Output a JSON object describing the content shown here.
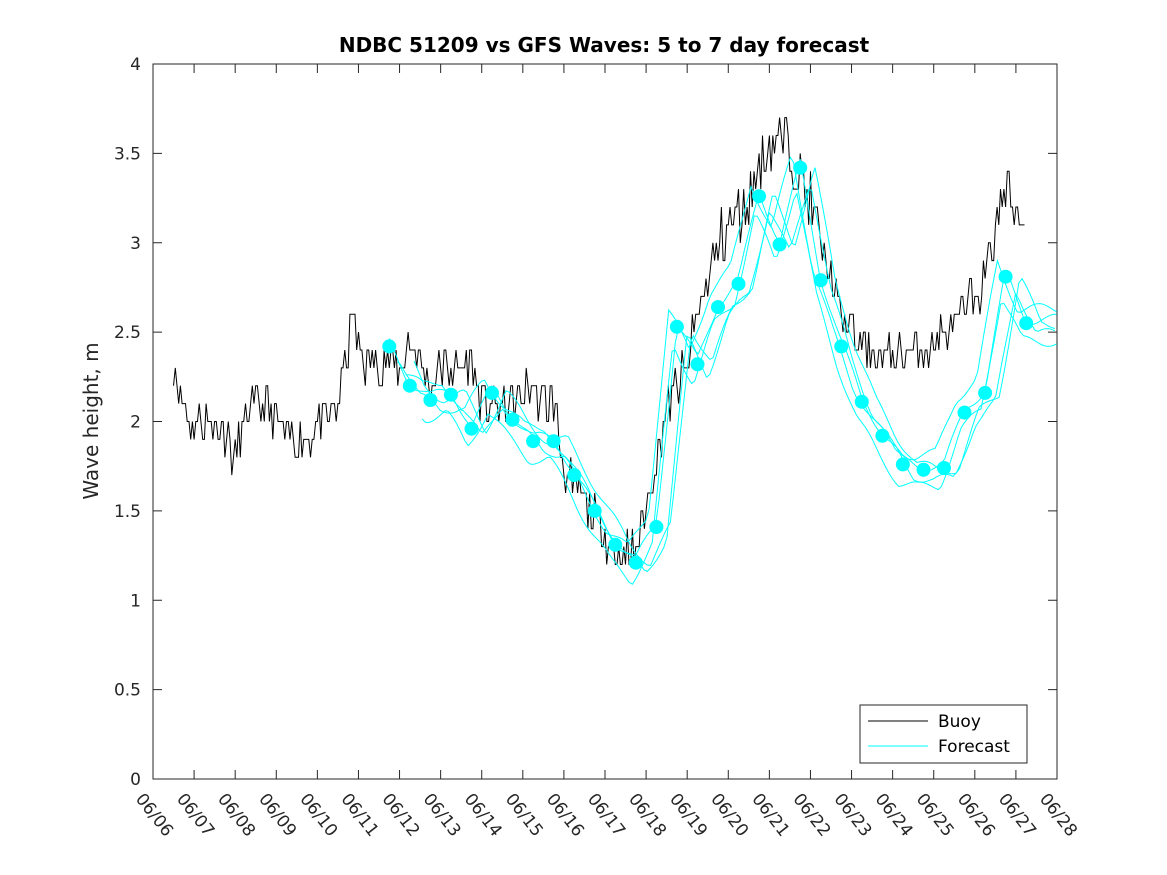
{
  "chart_data": {
    "type": "line",
    "title": "NDBC 51209 vs GFS Waves: 5 to 7 day forecast",
    "ylabel": "Wave height, m",
    "xlabel": "",
    "xlim": [
      "06/06",
      "06/28"
    ],
    "ylim": [
      0,
      4
    ],
    "x_tick_labels": [
      "06/06",
      "06/07",
      "06/08",
      "06/09",
      "06/10",
      "06/11",
      "06/12",
      "06/13",
      "06/14",
      "06/15",
      "06/16",
      "06/17",
      "06/18",
      "06/19",
      "06/20",
      "06/21",
      "06/22",
      "06/23",
      "06/24",
      "06/25",
      "06/26",
      "06/27",
      "06/28"
    ],
    "y_tick_labels": [
      "0",
      "0.5",
      "1",
      "1.5",
      "2",
      "2.5",
      "3",
      "3.5",
      "4"
    ],
    "legend": {
      "position": "bottom-right",
      "entries": [
        "Buoy",
        "Forecast"
      ]
    },
    "colors": {
      "buoy": "#000000",
      "forecast": "#00ffff"
    },
    "series": [
      {
        "name": "Buoy",
        "color": "#000000",
        "points": [
          [
            "06/06 12:00",
            2.3
          ],
          [
            "06/06 15:00",
            2.2
          ],
          [
            "06/06 18:00",
            2.1
          ],
          [
            "06/06 21:00",
            2.0
          ],
          [
            "06/07 00:00",
            2.0
          ],
          [
            "06/07 06:00",
            2.0
          ],
          [
            "06/07 12:00",
            2.0
          ],
          [
            "06/07 18:00",
            1.9
          ],
          [
            "06/08 00:00",
            1.8
          ],
          [
            "06/08 06:00",
            2.0
          ],
          [
            "06/08 12:00",
            2.1
          ],
          [
            "06/08 18:00",
            2.1
          ],
          [
            "06/09 00:00",
            2.0
          ],
          [
            "06/09 06:00",
            1.9
          ],
          [
            "06/09 12:00",
            1.9
          ],
          [
            "06/09 18:00",
            1.9
          ],
          [
            "06/10 00:00",
            2.0
          ],
          [
            "06/10 06:00",
            2.0
          ],
          [
            "06/10 12:00",
            2.1
          ],
          [
            "06/10 18:00",
            2.4
          ],
          [
            "06/10 21:00",
            2.6
          ],
          [
            "06/11 00:00",
            2.4
          ],
          [
            "06/11 06:00",
            2.3
          ],
          [
            "06/11 12:00",
            2.35
          ],
          [
            "06/11 18:00",
            2.35
          ],
          [
            "06/12 00:00",
            2.3
          ],
          [
            "06/12 06:00",
            2.45
          ],
          [
            "06/12 12:00",
            2.3
          ],
          [
            "06/12 18:00",
            2.2
          ],
          [
            "06/13 00:00",
            2.3
          ],
          [
            "06/13 06:00",
            2.3
          ],
          [
            "06/13 12:00",
            2.3
          ],
          [
            "06/13 18:00",
            2.3
          ],
          [
            "06/14 00:00",
            2.1
          ],
          [
            "06/14 06:00",
            2.1
          ],
          [
            "06/14 12:00",
            2.05
          ],
          [
            "06/14 18:00",
            2.1
          ],
          [
            "06/15 00:00",
            2.15
          ],
          [
            "06/15 06:00",
            2.2
          ],
          [
            "06/15 12:00",
            2.1
          ],
          [
            "06/15 18:00",
            2.1
          ],
          [
            "06/16 00:00",
            1.75
          ],
          [
            "06/16 06:00",
            1.6
          ],
          [
            "06/16 12:00",
            1.55
          ],
          [
            "06/16 18:00",
            1.45
          ],
          [
            "06/17 00:00",
            1.35
          ],
          [
            "06/17 06:00",
            1.3
          ],
          [
            "06/17 12:00",
            1.25
          ],
          [
            "06/17 18:00",
            1.3
          ],
          [
            "06/18 00:00",
            1.5
          ],
          [
            "06/18 06:00",
            1.8
          ],
          [
            "06/18 12:00",
            2.1
          ],
          [
            "06/18 18:00",
            2.2
          ],
          [
            "06/19 00:00",
            2.3
          ],
          [
            "06/19 06:00",
            2.6
          ],
          [
            "06/19 12:00",
            2.8
          ],
          [
            "06/19 18:00",
            3.0
          ],
          [
            "06/20 00:00",
            3.1
          ],
          [
            "06/20 06:00",
            3.15
          ],
          [
            "06/20 12:00",
            3.25
          ],
          [
            "06/20 18:00",
            3.4
          ],
          [
            "06/21 00:00",
            3.55
          ],
          [
            "06/21 06:00",
            3.6
          ],
          [
            "06/21 12:00",
            3.55
          ],
          [
            "06/21 18:00",
            3.4
          ],
          [
            "06/22 00:00",
            3.2
          ],
          [
            "06/22 06:00",
            3.0
          ],
          [
            "06/22 12:00",
            2.8
          ],
          [
            "06/22 18:00",
            2.6
          ],
          [
            "06/23 00:00",
            2.5
          ],
          [
            "06/23 06:00",
            2.45
          ],
          [
            "06/23 12:00",
            2.4
          ],
          [
            "06/23 18:00",
            2.35
          ],
          [
            "06/24 00:00",
            2.4
          ],
          [
            "06/24 06:00",
            2.4
          ],
          [
            "06/24 12:00",
            2.4
          ],
          [
            "06/24 18:00",
            2.4
          ],
          [
            "06/25 00:00",
            2.45
          ],
          [
            "06/25 06:00",
            2.5
          ],
          [
            "06/25 12:00",
            2.55
          ],
          [
            "06/25 18:00",
            2.6
          ],
          [
            "06/26 00:00",
            2.7
          ],
          [
            "06/26 06:00",
            2.8
          ],
          [
            "06/26 12:00",
            3.1
          ],
          [
            "06/26 18:00",
            3.3
          ],
          [
            "06/27 00:00",
            3.2
          ],
          [
            "06/27 06:00",
            3.1
          ]
        ]
      },
      {
        "name": "Forecast",
        "color": "#00ffff",
        "markers": [
          [
            "06/11 18:00",
            2.42
          ],
          [
            "06/12 06:00",
            2.2
          ],
          [
            "06/12 18:00",
            2.12
          ],
          [
            "06/13 06:00",
            2.15
          ],
          [
            "06/13 18:00",
            1.96
          ],
          [
            "06/14 06:00",
            2.16
          ],
          [
            "06/14 18:00",
            2.01
          ],
          [
            "06/15 06:00",
            1.89
          ],
          [
            "06/15 18:00",
            1.89
          ],
          [
            "06/16 06:00",
            1.7
          ],
          [
            "06/16 18:00",
            1.5
          ],
          [
            "06/17 06:00",
            1.31
          ],
          [
            "06/17 18:00",
            1.21
          ],
          [
            "06/18 06:00",
            1.41
          ],
          [
            "06/18 18:00",
            2.53
          ],
          [
            "06/19 06:00",
            2.32
          ],
          [
            "06/19 18:00",
            2.64
          ],
          [
            "06/20 06:00",
            2.77
          ],
          [
            "06/20 18:00",
            3.26
          ],
          [
            "06/21 06:00",
            2.99
          ],
          [
            "06/21 18:00",
            3.42
          ],
          [
            "06/22 06:00",
            2.79
          ],
          [
            "06/22 18:00",
            2.42
          ],
          [
            "06/23 06:00",
            2.11
          ],
          [
            "06/23 18:00",
            1.92
          ],
          [
            "06/24 06:00",
            1.76
          ],
          [
            "06/24 18:00",
            1.73
          ],
          [
            "06/25 06:00",
            1.74
          ],
          [
            "06/25 18:00",
            2.05
          ],
          [
            "06/26 06:00",
            2.16
          ],
          [
            "06/26 18:00",
            2.81
          ],
          [
            "06/27 06:00",
            2.55
          ]
        ]
      }
    ]
  }
}
